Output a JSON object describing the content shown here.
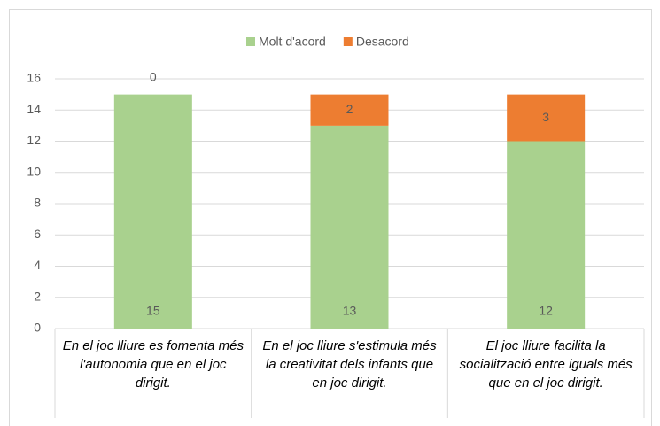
{
  "chart_data": {
    "type": "stacked_bar",
    "categories": [
      "En el joc lliure es fomenta més l'autonomia que en el joc dirigit.",
      "En el joc lliure s'estimula més la creativitat dels infants que en joc dirigit.",
      "El joc lliure facilita la socialització entre iguals més que en el joc dirigit."
    ],
    "series": [
      {
        "name": "Molt d'acord",
        "color": "#a9d18e",
        "values": [
          15,
          13,
          12
        ]
      },
      {
        "name": "Desacord",
        "color": "#ed7d31",
        "values": [
          0,
          2,
          3
        ]
      }
    ],
    "ylim": [
      0,
      16
    ],
    "yticks": [
      0,
      2,
      4,
      6,
      8,
      10,
      12,
      14,
      16
    ],
    "grid": true,
    "legend": "top"
  }
}
